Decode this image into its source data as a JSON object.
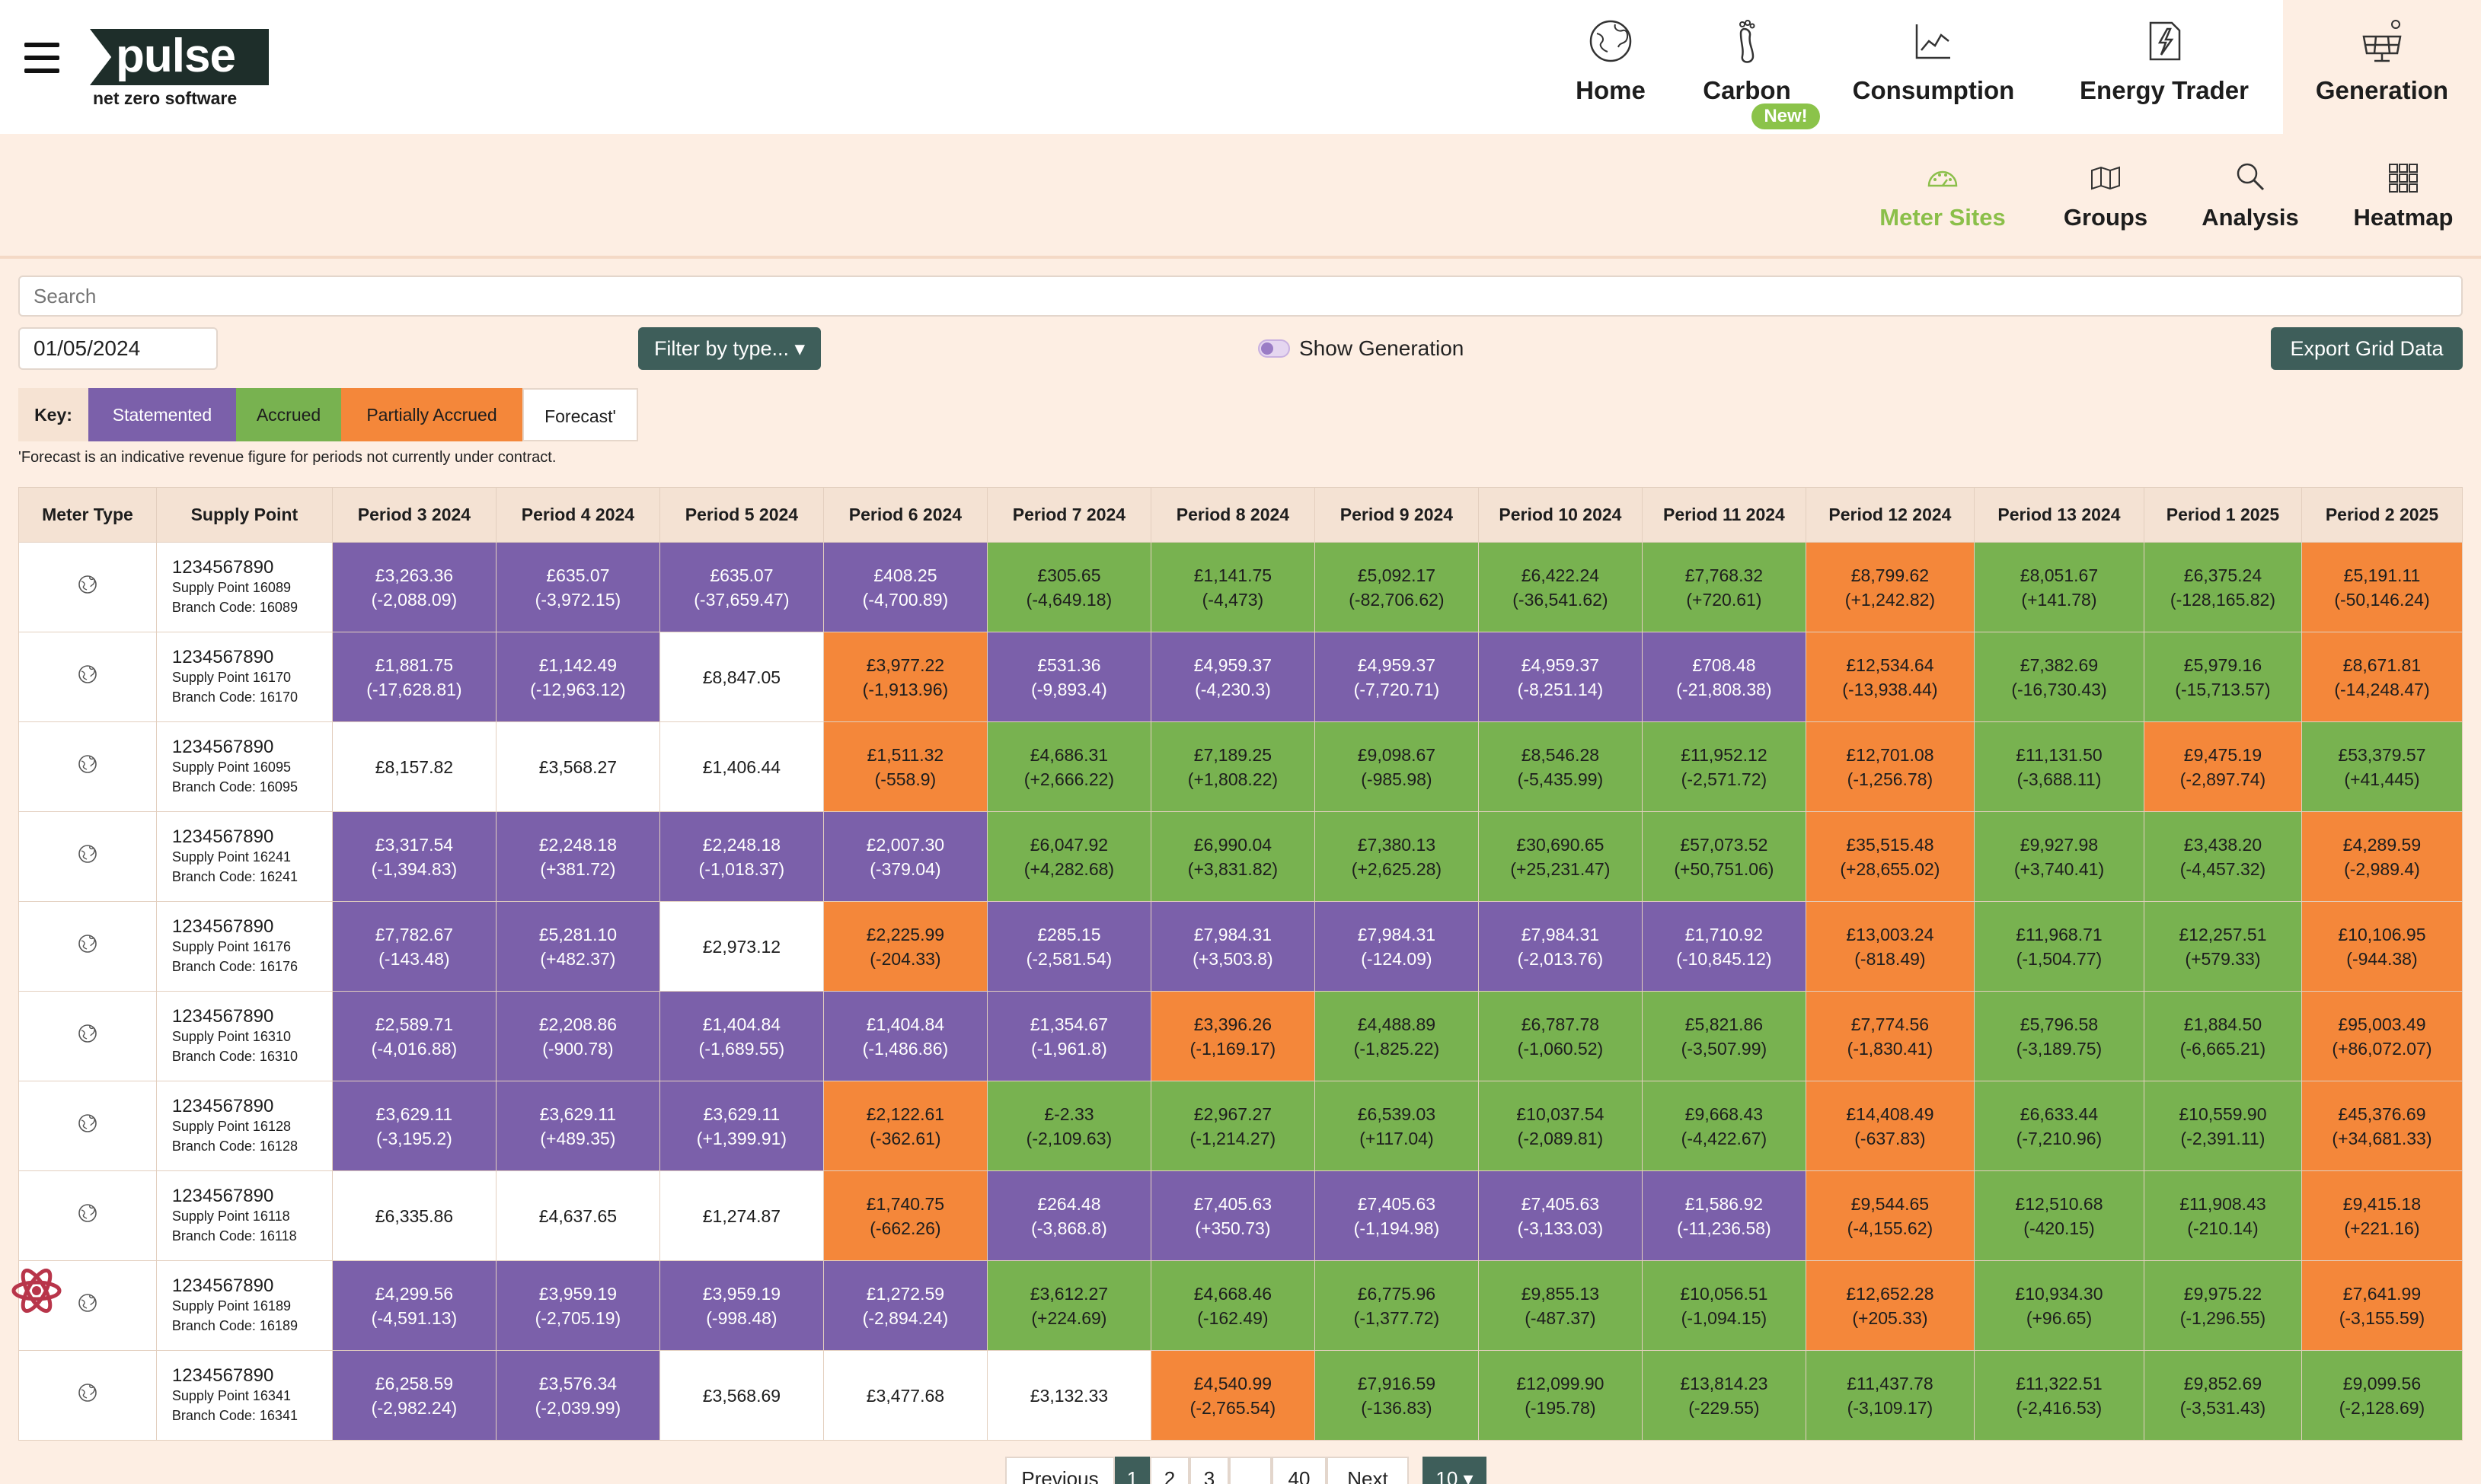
{
  "header": {
    "logo_word": "pulse",
    "logo_sub": "net zero software",
    "nav": [
      {
        "label": "Home",
        "icon": "globe-icon"
      },
      {
        "label": "Carbon",
        "icon": "footprint-icon",
        "badge": "New!"
      },
      {
        "label": "Consumption",
        "icon": "line-chart-icon"
      },
      {
        "label": "Energy Trader",
        "icon": "bolt-document-icon"
      },
      {
        "label": "Generation",
        "icon": "solar-panel-icon",
        "active": true
      }
    ]
  },
  "subnav": [
    {
      "label": "Meter Sites",
      "icon": "meter-gauge-icon",
      "active": true
    },
    {
      "label": "Groups",
      "icon": "groups-map-icon"
    },
    {
      "label": "Analysis",
      "icon": "magnifier-icon"
    },
    {
      "label": "Heatmap",
      "icon": "grid-icon"
    }
  ],
  "controls": {
    "search_placeholder": "Search",
    "date_value": "01/05/2024",
    "filter_label": "Filter by type... ▾",
    "toggle_label": "Show Generation",
    "export_label": "Export Grid Data"
  },
  "key": {
    "title": "Key:",
    "items": [
      "Statemented",
      "Accrued",
      "Partially Accrued",
      "Forecast'"
    ]
  },
  "footnote": "'Forecast is an indicative revenue figure for periods not currently under contract.",
  "colors": {
    "statemented": "#7b60aa",
    "accrued": "#78b250",
    "partially_accrued": "#f4873a",
    "forecast": "#ffffff",
    "accent": "#3e5e5a"
  },
  "table": {
    "headers": [
      "Meter Type",
      "Supply Point",
      "Period 3 2024",
      "Period 4 2024",
      "Period 5 2024",
      "Period 6 2024",
      "Period 7 2024",
      "Period 8 2024",
      "Period 9 2024",
      "Period 10 2024",
      "Period 11 2024",
      "Period 12 2024",
      "Period 13 2024",
      "Period 1 2025",
      "Period 2 2025"
    ],
    "rows": [
      {
        "mpan": "1234567890",
        "sp": "Supply Point 16089",
        "bc": "Branch Code: 16089",
        "cells": [
          [
            "S",
            "£3,263.36",
            "(-2,088.09)"
          ],
          [
            "S",
            "£635.07",
            "(-3,972.15)"
          ],
          [
            "S",
            "£635.07",
            "(-37,659.47)"
          ],
          [
            "S",
            "£408.25",
            "(-4,700.89)"
          ],
          [
            "A",
            "£305.65",
            "(-4,649.18)"
          ],
          [
            "A",
            "£1,141.75",
            "(-4,473)"
          ],
          [
            "A",
            "£5,092.17",
            "(-82,706.62)"
          ],
          [
            "A",
            "£6,422.24",
            "(-36,541.62)"
          ],
          [
            "A",
            "£7,768.32",
            "(+720.61)"
          ],
          [
            "P",
            "£8,799.62",
            "(+1,242.82)"
          ],
          [
            "A",
            "£8,051.67",
            "(+141.78)"
          ],
          [
            "A",
            "£6,375.24",
            "(-128,165.82)"
          ],
          [
            "P",
            "£5,191.11",
            "(-50,146.24)"
          ]
        ]
      },
      {
        "mpan": "1234567890",
        "sp": "Supply Point 16170",
        "bc": "Branch Code: 16170",
        "cells": [
          [
            "S",
            "£1,881.75",
            "(-17,628.81)"
          ],
          [
            "S",
            "£1,142.49",
            "(-12,963.12)"
          ],
          [
            "F",
            "£8,847.05",
            ""
          ],
          [
            "P",
            "£3,977.22",
            "(-1,913.96)"
          ],
          [
            "S",
            "£531.36",
            "(-9,893.4)"
          ],
          [
            "S",
            "£4,959.37",
            "(-4,230.3)"
          ],
          [
            "S",
            "£4,959.37",
            "(-7,720.71)"
          ],
          [
            "S",
            "£4,959.37",
            "(-8,251.14)"
          ],
          [
            "S",
            "£708.48",
            "(-21,808.38)"
          ],
          [
            "P",
            "£12,534.64",
            "(-13,938.44)"
          ],
          [
            "A",
            "£7,382.69",
            "(-16,730.43)"
          ],
          [
            "A",
            "£5,979.16",
            "(-15,713.57)"
          ],
          [
            "P",
            "£8,671.81",
            "(-14,248.47)"
          ]
        ]
      },
      {
        "mpan": "1234567890",
        "sp": "Supply Point 16095",
        "bc": "Branch Code: 16095",
        "cells": [
          [
            "F",
            "£8,157.82",
            ""
          ],
          [
            "F",
            "£3,568.27",
            ""
          ],
          [
            "F",
            "£1,406.44",
            ""
          ],
          [
            "P",
            "£1,511.32",
            "(-558.9)"
          ],
          [
            "A",
            "£4,686.31",
            "(+2,666.22)"
          ],
          [
            "A",
            "£7,189.25",
            "(+1,808.22)"
          ],
          [
            "A",
            "£9,098.67",
            "(-985.98)"
          ],
          [
            "A",
            "£8,546.28",
            "(-5,435.99)"
          ],
          [
            "A",
            "£11,952.12",
            "(-2,571.72)"
          ],
          [
            "P",
            "£12,701.08",
            "(-1,256.78)"
          ],
          [
            "A",
            "£11,131.50",
            "(-3,688.11)"
          ],
          [
            "P",
            "£9,475.19",
            "(-2,897.74)"
          ],
          [
            "A",
            "£53,379.57",
            "(+41,445)"
          ]
        ]
      },
      {
        "mpan": "1234567890",
        "sp": "Supply Point 16241",
        "bc": "Branch Code: 16241",
        "cells": [
          [
            "S",
            "£3,317.54",
            "(-1,394.83)"
          ],
          [
            "S",
            "£2,248.18",
            "(+381.72)"
          ],
          [
            "S",
            "£2,248.18",
            "(-1,018.37)"
          ],
          [
            "S",
            "£2,007.30",
            "(-379.04)"
          ],
          [
            "A",
            "£6,047.92",
            "(+4,282.68)"
          ],
          [
            "A",
            "£6,990.04",
            "(+3,831.82)"
          ],
          [
            "A",
            "£7,380.13",
            "(+2,625.28)"
          ],
          [
            "A",
            "£30,690.65",
            "(+25,231.47)"
          ],
          [
            "A",
            "£57,073.52",
            "(+50,751.06)"
          ],
          [
            "P",
            "£35,515.48",
            "(+28,655.02)"
          ],
          [
            "A",
            "£9,927.98",
            "(+3,740.41)"
          ],
          [
            "A",
            "£3,438.20",
            "(-4,457.32)"
          ],
          [
            "P",
            "£4,289.59",
            "(-2,989.4)"
          ]
        ]
      },
      {
        "mpan": "1234567890",
        "sp": "Supply Point 16176",
        "bc": "Branch Code: 16176",
        "cells": [
          [
            "S",
            "£7,782.67",
            "(-143.48)"
          ],
          [
            "S",
            "£5,281.10",
            "(+482.37)"
          ],
          [
            "F",
            "£2,973.12",
            ""
          ],
          [
            "P",
            "£2,225.99",
            "(-204.33)"
          ],
          [
            "S",
            "£285.15",
            "(-2,581.54)"
          ],
          [
            "S",
            "£7,984.31",
            "(+3,503.8)"
          ],
          [
            "S",
            "£7,984.31",
            "(-124.09)"
          ],
          [
            "S",
            "£7,984.31",
            "(-2,013.76)"
          ],
          [
            "S",
            "£1,710.92",
            "(-10,845.12)"
          ],
          [
            "P",
            "£13,003.24",
            "(-818.49)"
          ],
          [
            "A",
            "£11,968.71",
            "(-1,504.77)"
          ],
          [
            "A",
            "£12,257.51",
            "(+579.33)"
          ],
          [
            "P",
            "£10,106.95",
            "(-944.38)"
          ]
        ]
      },
      {
        "mpan": "1234567890",
        "sp": "Supply Point 16310",
        "bc": "Branch Code: 16310",
        "cells": [
          [
            "S",
            "£2,589.71",
            "(-4,016.88)"
          ],
          [
            "S",
            "£2,208.86",
            "(-900.78)"
          ],
          [
            "S",
            "£1,404.84",
            "(-1,689.55)"
          ],
          [
            "S",
            "£1,404.84",
            "(-1,486.86)"
          ],
          [
            "S",
            "£1,354.67",
            "(-1,961.8)"
          ],
          [
            "P",
            "£3,396.26",
            "(-1,169.17)"
          ],
          [
            "A",
            "£4,488.89",
            "(-1,825.22)"
          ],
          [
            "A",
            "£6,787.78",
            "(-1,060.52)"
          ],
          [
            "A",
            "£5,821.86",
            "(-3,507.99)"
          ],
          [
            "P",
            "£7,774.56",
            "(-1,830.41)"
          ],
          [
            "A",
            "£5,796.58",
            "(-3,189.75)"
          ],
          [
            "A",
            "£1,884.50",
            "(-6,665.21)"
          ],
          [
            "P",
            "£95,003.49",
            "(+86,072.07)"
          ]
        ]
      },
      {
        "mpan": "1234567890",
        "sp": "Supply Point 16128",
        "bc": "Branch Code: 16128",
        "cells": [
          [
            "S",
            "£3,629.11",
            "(-3,195.2)"
          ],
          [
            "S",
            "£3,629.11",
            "(+489.35)"
          ],
          [
            "S",
            "£3,629.11",
            "(+1,399.91)"
          ],
          [
            "P",
            "£2,122.61",
            "(-362.61)"
          ],
          [
            "A",
            "£-2.33",
            "(-2,109.63)"
          ],
          [
            "A",
            "£2,967.27",
            "(-1,214.27)"
          ],
          [
            "A",
            "£6,539.03",
            "(+117.04)"
          ],
          [
            "A",
            "£10,037.54",
            "(-2,089.81)"
          ],
          [
            "A",
            "£9,668.43",
            "(-4,422.67)"
          ],
          [
            "P",
            "£14,408.49",
            "(-637.83)"
          ],
          [
            "A",
            "£6,633.44",
            "(-7,210.96)"
          ],
          [
            "A",
            "£10,559.90",
            "(-2,391.11)"
          ],
          [
            "P",
            "£45,376.69",
            "(+34,681.33)"
          ]
        ]
      },
      {
        "mpan": "1234567890",
        "sp": "Supply Point 16118",
        "bc": "Branch Code: 16118",
        "cells": [
          [
            "F",
            "£6,335.86",
            ""
          ],
          [
            "F",
            "£4,637.65",
            ""
          ],
          [
            "F",
            "£1,274.87",
            ""
          ],
          [
            "P",
            "£1,740.75",
            "(-662.26)"
          ],
          [
            "S",
            "£264.48",
            "(-3,868.8)"
          ],
          [
            "S",
            "£7,405.63",
            "(+350.73)"
          ],
          [
            "S",
            "£7,405.63",
            "(-1,194.98)"
          ],
          [
            "S",
            "£7,405.63",
            "(-3,133.03)"
          ],
          [
            "S",
            "£1,586.92",
            "(-11,236.58)"
          ],
          [
            "P",
            "£9,544.65",
            "(-4,155.62)"
          ],
          [
            "A",
            "£12,510.68",
            "(-420.15)"
          ],
          [
            "A",
            "£11,908.43",
            "(-210.14)"
          ],
          [
            "P",
            "£9,415.18",
            "(+221.16)"
          ]
        ]
      },
      {
        "mpan": "1234567890",
        "sp": "Supply Point 16189",
        "bc": "Branch Code: 16189",
        "cells": [
          [
            "S",
            "£4,299.56",
            "(-4,591.13)"
          ],
          [
            "S",
            "£3,959.19",
            "(-2,705.19)"
          ],
          [
            "S",
            "£3,959.19",
            "(-998.48)"
          ],
          [
            "S",
            "£1,272.59",
            "(-2,894.24)"
          ],
          [
            "A",
            "£3,612.27",
            "(+224.69)"
          ],
          [
            "A",
            "£4,668.46",
            "(-162.49)"
          ],
          [
            "A",
            "£6,775.96",
            "(-1,377.72)"
          ],
          [
            "A",
            "£9,855.13",
            "(-487.37)"
          ],
          [
            "A",
            "£10,056.51",
            "(-1,094.15)"
          ],
          [
            "P",
            "£12,652.28",
            "(+205.33)"
          ],
          [
            "A",
            "£10,934.30",
            "(+96.65)"
          ],
          [
            "A",
            "£9,975.22",
            "(-1,296.55)"
          ],
          [
            "P",
            "£7,641.99",
            "(-3,155.59)"
          ]
        ]
      },
      {
        "mpan": "1234567890",
        "sp": "Supply Point 16341",
        "bc": "Branch Code: 16341",
        "cells": [
          [
            "S",
            "£6,258.59",
            "(-2,982.24)"
          ],
          [
            "S",
            "£3,576.34",
            "(-2,039.99)"
          ],
          [
            "F",
            "£3,568.69",
            ""
          ],
          [
            "F",
            "£3,477.68",
            ""
          ],
          [
            "F",
            "£3,132.33",
            ""
          ],
          [
            "P",
            "£4,540.99",
            "(-2,765.54)"
          ],
          [
            "A",
            "£7,916.59",
            "(-136.83)"
          ],
          [
            "A",
            "£12,099.90",
            "(-195.78)"
          ],
          [
            "A",
            "£13,814.23",
            "(-229.55)"
          ],
          [
            "A",
            "£11,437.78",
            "(-3,109.17)"
          ],
          [
            "A",
            "£11,322.51",
            "(-2,416.53)"
          ],
          [
            "A",
            "£9,852.69",
            "(-3,531.43)"
          ],
          [
            "A",
            "£9,099.56",
            "(-2,128.69)"
          ]
        ]
      }
    ]
  },
  "pagination": {
    "items": [
      "Previous",
      "1",
      "2",
      "3",
      "",
      "40",
      "Next",
      "10 ▾"
    ],
    "current": "1"
  }
}
